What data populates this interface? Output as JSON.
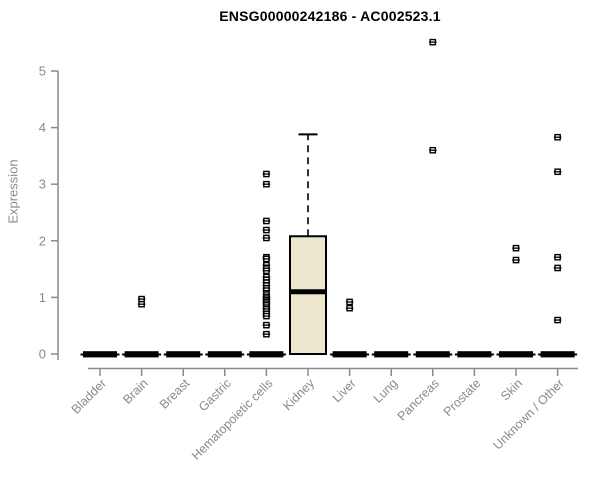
{
  "title": "ENSG00000242186 - AC002523.1",
  "chart_data": {
    "type": "box",
    "title": "ENSG00000242186 - AC002523.1",
    "xlabel": "",
    "ylabel": "Expression",
    "ylim": [
      0,
      5.55
    ],
    "yticks": [
      0,
      1,
      2,
      3,
      4,
      5
    ],
    "grid": "off",
    "legend": "none",
    "categories": [
      "Bladder",
      "Brain",
      "Breast",
      "Gastric",
      "Hematopoietic cells",
      "Kidney",
      "Liver",
      "Lung",
      "Pancreas",
      "Prostate",
      "Skin",
      "Unknown / Other"
    ],
    "boxes": [
      {
        "category": "Bladder",
        "q1": 0,
        "median": 0,
        "q3": 0,
        "whisker_low": 0,
        "whisker_high": 0,
        "outliers": []
      },
      {
        "category": "Brain",
        "q1": 0,
        "median": 0,
        "q3": 0,
        "whisker_low": 0,
        "whisker_high": 0,
        "outliers": [
          0.97,
          0.88
        ]
      },
      {
        "category": "Breast",
        "q1": 0,
        "median": 0,
        "q3": 0,
        "whisker_low": 0,
        "whisker_high": 0,
        "outliers": []
      },
      {
        "category": "Gastric",
        "q1": 0,
        "median": 0,
        "q3": 0,
        "whisker_low": 0,
        "whisker_high": 0,
        "outliers": []
      },
      {
        "category": "Hematopoietic cells",
        "q1": 0,
        "median": 0,
        "q3": 0,
        "whisker_low": 0,
        "whisker_high": 0,
        "outliers": [
          3.18,
          3.0,
          2.35,
          2.19,
          2.05,
          1.71,
          1.68,
          1.57,
          1.51,
          1.47,
          1.36,
          1.31,
          1.26,
          1.21,
          1.16,
          1.12,
          1.05,
          1.01,
          0.98,
          0.95,
          0.92,
          0.89,
          0.86,
          0.82,
          0.79,
          0.75,
          0.71,
          0.67,
          0.51,
          0.35
        ]
      },
      {
        "category": "Kidney",
        "q1": 0,
        "median": 1.1,
        "q3": 2.08,
        "whisker_low": 0,
        "whisker_high": 3.88,
        "outliers": []
      },
      {
        "category": "Liver",
        "q1": 0,
        "median": 0,
        "q3": 0,
        "whisker_low": 0,
        "whisker_high": 0,
        "outliers": [
          0.92,
          0.81
        ]
      },
      {
        "category": "Lung",
        "q1": 0,
        "median": 0,
        "q3": 0,
        "whisker_low": 0,
        "whisker_high": 0,
        "outliers": []
      },
      {
        "category": "Pancreas",
        "q1": 0,
        "median": 0,
        "q3": 0,
        "whisker_low": 0,
        "whisker_high": 0,
        "outliers": [
          5.51,
          3.6
        ]
      },
      {
        "category": "Prostate",
        "q1": 0,
        "median": 0,
        "q3": 0,
        "whisker_low": 0,
        "whisker_high": 0,
        "outliers": []
      },
      {
        "category": "Skin",
        "q1": 0,
        "median": 0,
        "q3": 0,
        "whisker_low": 0,
        "whisker_high": 0,
        "outliers": [
          1.87,
          1.66
        ]
      },
      {
        "category": "Unknown / Other",
        "q1": 0,
        "median": 0,
        "q3": 0,
        "whisker_low": 0,
        "whisker_high": 0,
        "outliers": [
          3.83,
          3.22,
          1.71,
          1.52,
          0.6
        ]
      }
    ],
    "colors": {
      "box_fill": "#EDE8CD",
      "box_stroke": "#000000",
      "median": "#000000",
      "axis_line": "#8a8a8a",
      "axis_text": "#8a8a8a",
      "title_text": "#000000",
      "outlier_stroke": "#000000",
      "outlier_fill": "#ffffff"
    }
  }
}
